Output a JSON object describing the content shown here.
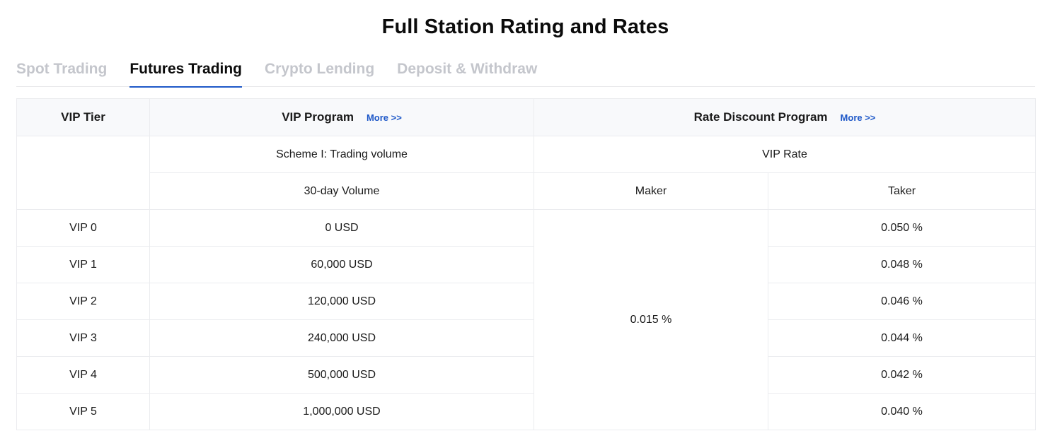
{
  "page": {
    "title": "Full Station Rating and Rates"
  },
  "tabs": [
    {
      "label": "Spot Trading",
      "active": false
    },
    {
      "label": "Futures Trading",
      "active": true
    },
    {
      "label": "Crypto Lending",
      "active": false
    },
    {
      "label": "Deposit & Withdraw",
      "active": false
    }
  ],
  "table": {
    "headers": {
      "vip_tier": "VIP Tier",
      "vip_program": "VIP Program",
      "vip_program_more": "More >>",
      "rate_discount": "Rate Discount Program",
      "rate_discount_more": "More >>"
    },
    "subheaders": {
      "scheme": "Scheme I: Trading volume",
      "vip_rate": "VIP Rate",
      "volume": "30-day Volume",
      "maker": "Maker",
      "taker": "Taker"
    },
    "maker_rate": "0.015 %",
    "rows": [
      {
        "tier": "VIP 0",
        "volume": "0 USD",
        "taker": "0.050 %"
      },
      {
        "tier": "VIP 1",
        "volume": "60,000 USD",
        "taker": "0.048 %"
      },
      {
        "tier": "VIP 2",
        "volume": "120,000 USD",
        "taker": "0.046 %"
      },
      {
        "tier": "VIP 3",
        "volume": "240,000 USD",
        "taker": "0.044 %"
      },
      {
        "tier": "VIP 4",
        "volume": "500,000 USD",
        "taker": "0.042 %"
      },
      {
        "tier": "VIP 5",
        "volume": "1,000,000 USD",
        "taker": "0.040 %"
      }
    ]
  },
  "colors": {
    "accent": "#1e58c8",
    "inactive_tab": "#c4c6cc",
    "header_bg": "#f8f9fb",
    "border": "#ebecef"
  }
}
